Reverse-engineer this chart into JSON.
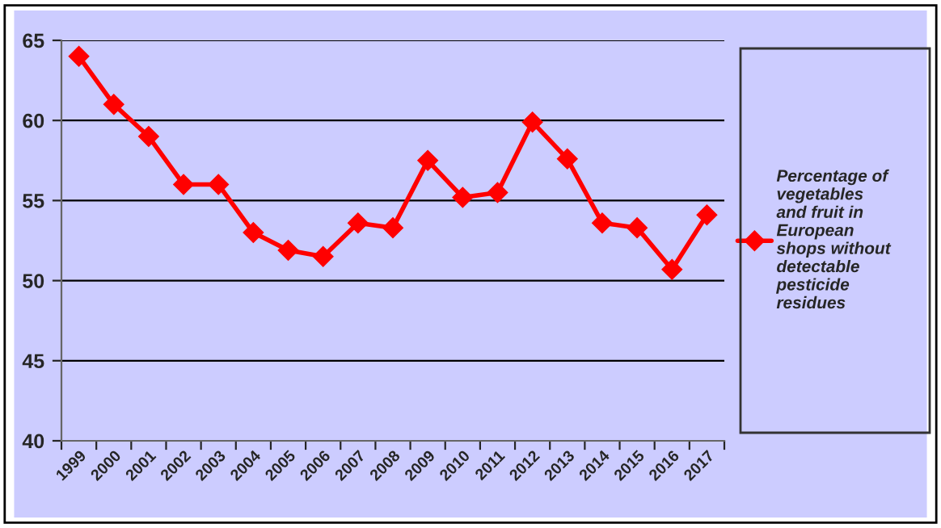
{
  "chart_data": {
    "type": "line",
    "categories": [
      "1999",
      "2000",
      "2001",
      "2002",
      "2003",
      "2004",
      "2005",
      "2006",
      "2007",
      "2008",
      "2009",
      "2010",
      "2011",
      "2012",
      "2013",
      "2014",
      "2015",
      "2016",
      "2017"
    ],
    "series": [
      {
        "name": "Percentage of\nvegetables\nand fruit in\nEuropean\nshops without\ndetectable\npesticide\nresidues",
        "color": "#ff0000",
        "values": [
          64.0,
          61.0,
          59.0,
          56.0,
          56.0,
          53.0,
          51.9,
          51.5,
          53.6,
          53.3,
          57.5,
          55.2,
          55.5,
          59.9,
          57.6,
          53.6,
          53.3,
          50.7,
          54.1
        ]
      }
    ],
    "ylim": [
      40,
      65
    ],
    "yticks": [
      40,
      45,
      50,
      55,
      60,
      65
    ],
    "grid": "y",
    "legend": "right",
    "marker": "diamond",
    "line_style": "solid"
  }
}
